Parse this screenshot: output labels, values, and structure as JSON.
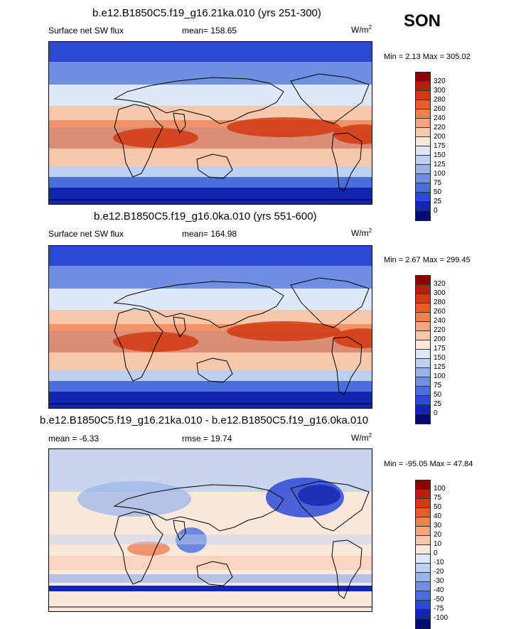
{
  "season": "SON",
  "panels": [
    {
      "title": "b.e12.B1850C5.f19_g16.21ka.010 (yrs 251-300)",
      "left": "Surface net SW flux",
      "center": "mean= 158.65",
      "units_base": "W/m",
      "units_exp": "2",
      "minmax": "Min =   2.13 Max = 305.02",
      "ticks": [
        "320",
        "300",
        "280",
        "260",
        "240",
        "220",
        "200",
        "175",
        "150",
        "125",
        "100",
        "75",
        "50",
        "25",
        "0"
      ],
      "colors": [
        "#8b0000",
        "#b0200a",
        "#d23a10",
        "#e85c28",
        "#f08050",
        "#f5a480",
        "#f8c8ac",
        "#fbe8dc",
        "#dde8f6",
        "#bcd0f0",
        "#98b4ea",
        "#6f90e2",
        "#4a6edc",
        "#2a4ad4",
        "#1226b0",
        "#040a7a"
      ],
      "kind": "abs"
    },
    {
      "title": "b.e12.B1850C5.f19_g16.0ka.010 (yrs 551-600)",
      "left": "Surface net SW flux",
      "center": "mean= 164.98",
      "units_base": "W/m",
      "units_exp": "2",
      "minmax": "Min =   2.67 Max = 299.45",
      "ticks": [
        "320",
        "300",
        "280",
        "260",
        "240",
        "220",
        "200",
        "175",
        "150",
        "125",
        "100",
        "75",
        "50",
        "25",
        "0"
      ],
      "colors": [
        "#8b0000",
        "#b0200a",
        "#d23a10",
        "#e85c28",
        "#f08050",
        "#f5a480",
        "#f8c8ac",
        "#fbe8dc",
        "#dde8f6",
        "#bcd0f0",
        "#98b4ea",
        "#6f90e2",
        "#4a6edc",
        "#2a4ad4",
        "#1226b0",
        "#040a7a"
      ],
      "kind": "abs"
    },
    {
      "title": "b.e12.B1850C5.f19_g16.21ka.010 - b.e12.B1850C5.f19_g16.0ka.010",
      "left": "mean =  -6.33",
      "center": "rmse =  19.74",
      "units_base": "W/m",
      "units_exp": "2",
      "minmax": "Min = -95.05 Max =  47.84",
      "ticks": [
        "100",
        "75",
        "50",
        "40",
        "30",
        "20",
        "10",
        "0",
        "-10",
        "-20",
        "-30",
        "-40",
        "-50",
        "-75",
        "-100"
      ],
      "colors": [
        "#8b0000",
        "#b0200a",
        "#d23a10",
        "#e85c28",
        "#f08050",
        "#f5a480",
        "#f8c8ac",
        "#fbe8dc",
        "#dde8f6",
        "#bcd0f0",
        "#98b4ea",
        "#6f90e2",
        "#4a6edc",
        "#2a4ad4",
        "#1226b0",
        "#040a7a"
      ],
      "kind": "diff"
    }
  ]
}
